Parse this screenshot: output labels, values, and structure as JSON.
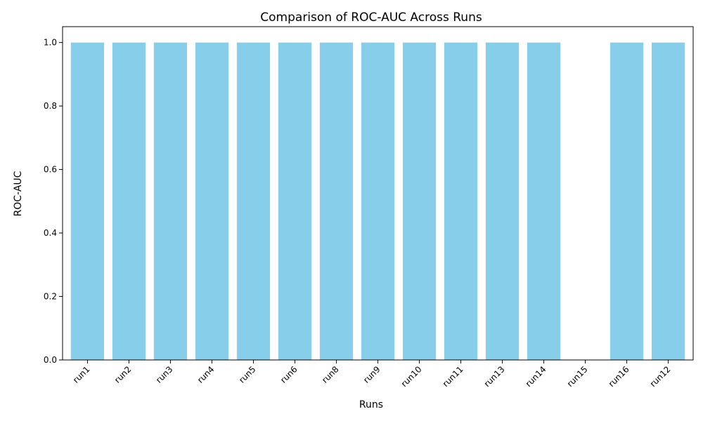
{
  "chart_data": {
    "type": "bar",
    "title": "Comparison of ROC-AUC Across Runs",
    "xlabel": "Runs",
    "ylabel": "ROC-AUC",
    "categories": [
      "run1",
      "run2",
      "run3",
      "run4",
      "run5",
      "run6",
      "run8",
      "run9",
      "run10",
      "run11",
      "run13",
      "run14",
      "run15",
      "run16",
      "run12"
    ],
    "values": [
      1.0,
      1.0,
      1.0,
      1.0,
      1.0,
      1.0,
      1.0,
      1.0,
      1.0,
      1.0,
      1.0,
      1.0,
      null,
      1.0,
      1.0
    ],
    "ylim": [
      0,
      1.05
    ],
    "yticks": [
      0.0,
      0.2,
      0.4,
      0.6,
      0.8,
      1.0
    ],
    "ytick_labels": [
      "0.0",
      "0.2",
      "0.4",
      "0.6",
      "0.8",
      "1.0"
    ],
    "grid": false,
    "bar_color": "#87ceeb",
    "axis_color": "#000000"
  }
}
